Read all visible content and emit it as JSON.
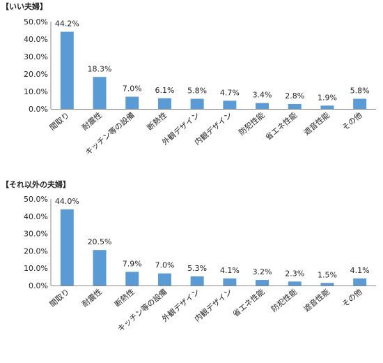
{
  "chart_data": [
    {
      "type": "bar",
      "title": "【いい夫婦】",
      "xlabel": "",
      "ylabel": "",
      "ylim": [
        0,
        50
      ],
      "yticks": [
        "0.0%",
        "10.0%",
        "20.0%",
        "30.0%",
        "40.0%",
        "50.0%"
      ],
      "grid": false,
      "color": "#5b9bd5",
      "categories": [
        "間取り",
        "耐震性",
        "キッチン等の設備",
        "断熱性",
        "外観デザイン",
        "内観デザイン",
        "防犯性能",
        "省エネ性能",
        "遮音性能",
        "その他"
      ],
      "values": [
        44.2,
        18.3,
        7.0,
        6.1,
        5.8,
        4.7,
        3.4,
        2.8,
        1.9,
        5.8
      ],
      "data_labels": [
        "44.2%",
        "18.3%",
        "7.0%",
        "6.1%",
        "5.8%",
        "4.7%",
        "3.4%",
        "2.8%",
        "1.9%",
        "5.8%"
      ]
    },
    {
      "type": "bar",
      "title": "【それ以外の夫婦】",
      "xlabel": "",
      "ylabel": "",
      "ylim": [
        0,
        50
      ],
      "yticks": [
        "0.0%",
        "10.0%",
        "20.0%",
        "30.0%",
        "40.0%",
        "50.0%"
      ],
      "grid": false,
      "color": "#5b9bd5",
      "categories": [
        "間取り",
        "耐震性",
        "断熱性",
        "キッチン等の設備",
        "外観デザイン",
        "内観デザイン",
        "省エネ性能",
        "防犯性能",
        "遮音性能",
        "その他"
      ],
      "values": [
        44.0,
        20.5,
        7.9,
        7.0,
        5.3,
        4.1,
        3.2,
        2.3,
        1.5,
        4.1
      ],
      "data_labels": [
        "44.0%",
        "20.5%",
        "7.9%",
        "7.0%",
        "5.3%",
        "4.1%",
        "3.2%",
        "2.3%",
        "1.5%",
        "4.1%"
      ]
    }
  ]
}
